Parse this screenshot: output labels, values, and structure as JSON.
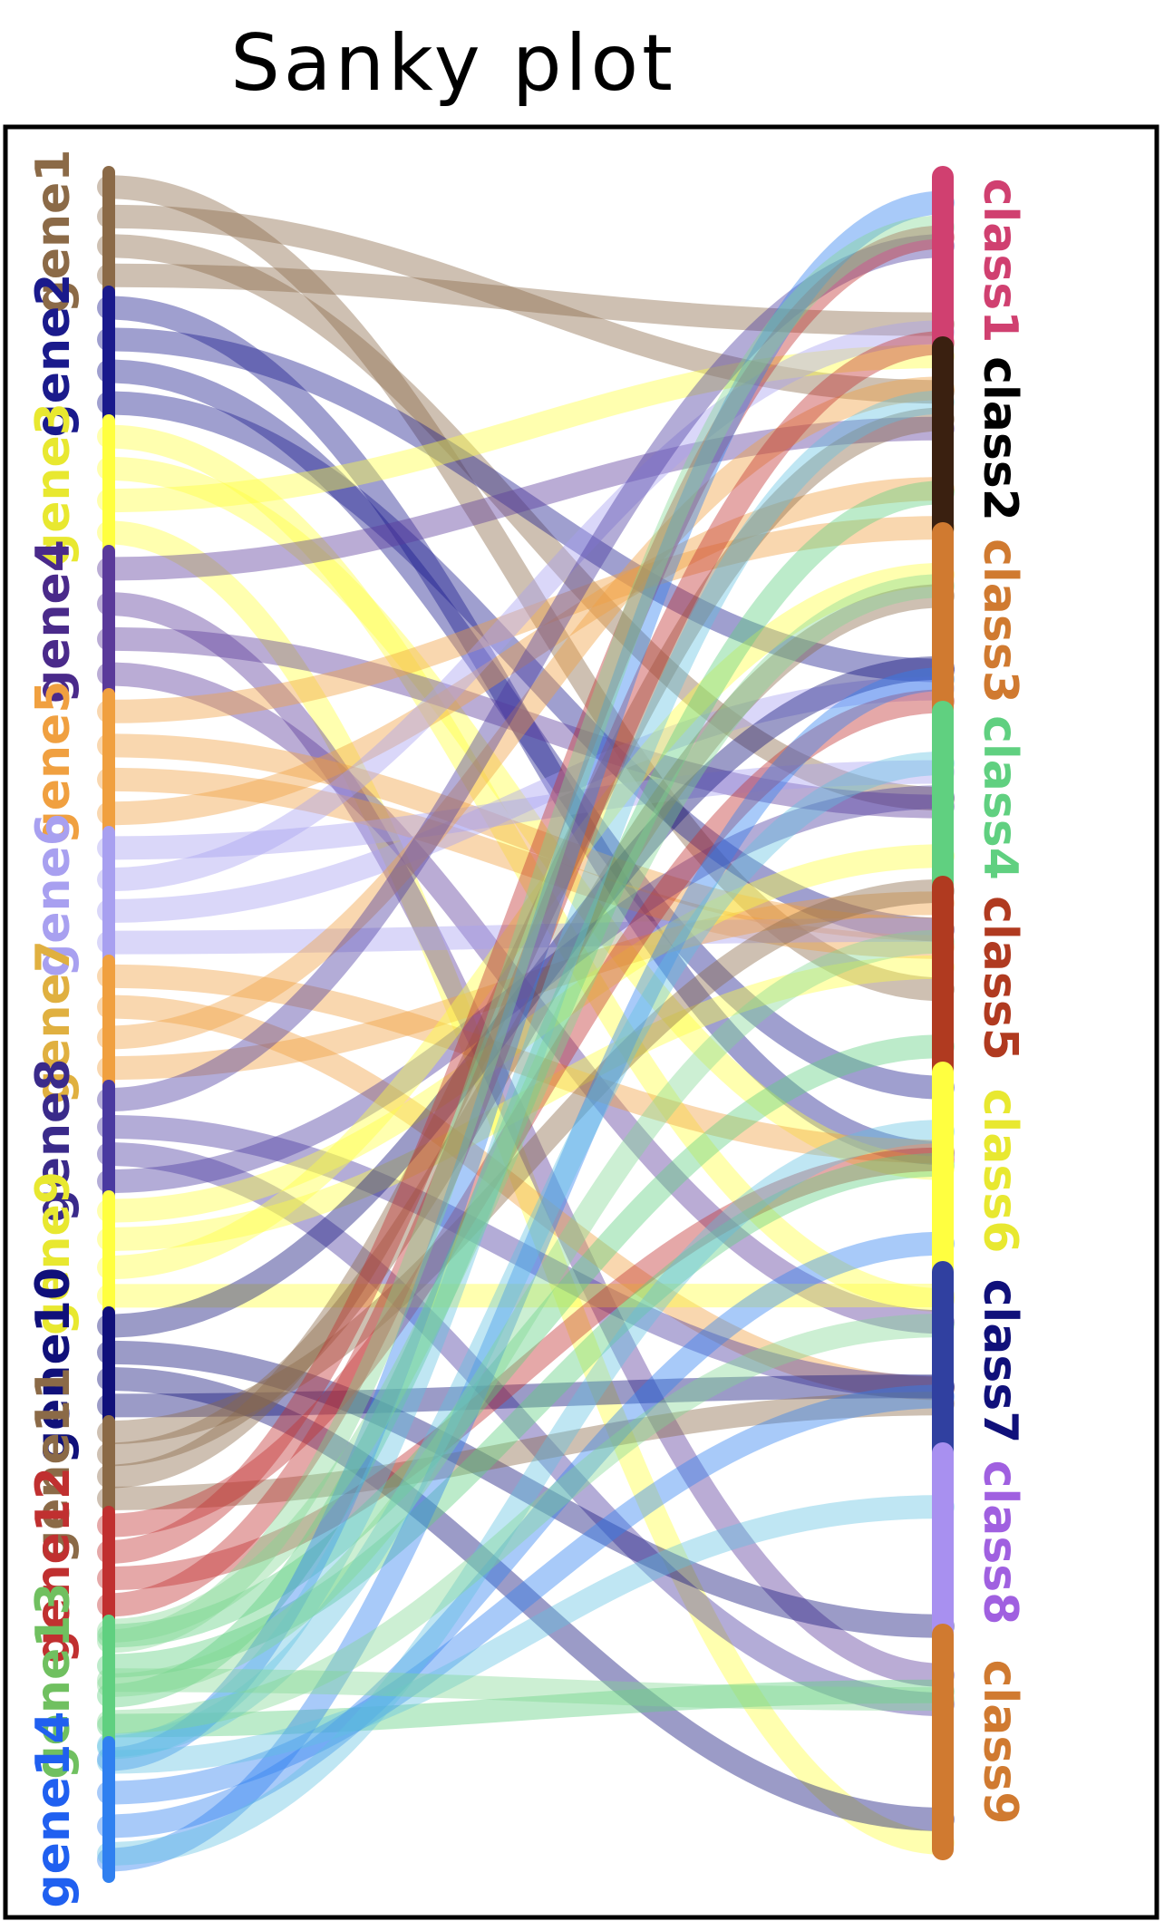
{
  "title": "Sanky plot",
  "left_nodes": [
    {
      "label": "gene1",
      "color": "#8B6A47"
    },
    {
      "label": "gene2",
      "color": "#1A1A8C"
    },
    {
      "label": "gene3",
      "color": "#FFFF40"
    },
    {
      "label": "gene4",
      "color": "#5A3A9A"
    },
    {
      "label": "gene5",
      "color": "#F0A040"
    },
    {
      "label": "gene6",
      "color": "#A8A0F0"
    },
    {
      "label": "gene7",
      "color": "#F0A040"
    },
    {
      "label": "gene8",
      "color": "#4A3AA0"
    },
    {
      "label": "gene9",
      "color": "#FFFF40"
    },
    {
      "label": "gene10",
      "color": "#10107A"
    },
    {
      "label": "gene11",
      "color": "#8B6A47"
    },
    {
      "label": "gene12",
      "color": "#C03030"
    },
    {
      "label": "gene13",
      "color": "#60D080"
    },
    {
      "label": "gene14",
      "color": "#3080F0"
    }
  ],
  "right_nodes": [
    {
      "label": "class1",
      "color": "#D04070"
    },
    {
      "label": "class2",
      "color": "#3A2010"
    },
    {
      "label": "class3",
      "color": "#D07A30"
    },
    {
      "label": "class4",
      "color": "#60D080"
    },
    {
      "label": "class5",
      "color": "#B03A20"
    },
    {
      "label": "class6",
      "color": "#FFFF40"
    },
    {
      "label": "class7",
      "color": "#3040A0"
    },
    {
      "label": "class8",
      "color": "#A890F0"
    },
    {
      "label": "class9",
      "color": "#D07A30"
    }
  ],
  "left_label_colors": [
    "#8B6A47",
    "#1A1A8C",
    "#E8E830",
    "#4A2A8A",
    "#F0A040",
    "#A8A0F0",
    "#E0B040",
    "#3A2A8A",
    "#E8E830",
    "#10107A",
    "#8B6A47",
    "#C03030",
    "#70C060",
    "#2060F0"
  ],
  "right_label_colors": [
    "#D04070",
    "#000000",
    "#D07A30",
    "#60D080",
    "#B03A20",
    "#E8E830",
    "#10107A",
    "#A060E0",
    "#D07A30"
  ]
}
